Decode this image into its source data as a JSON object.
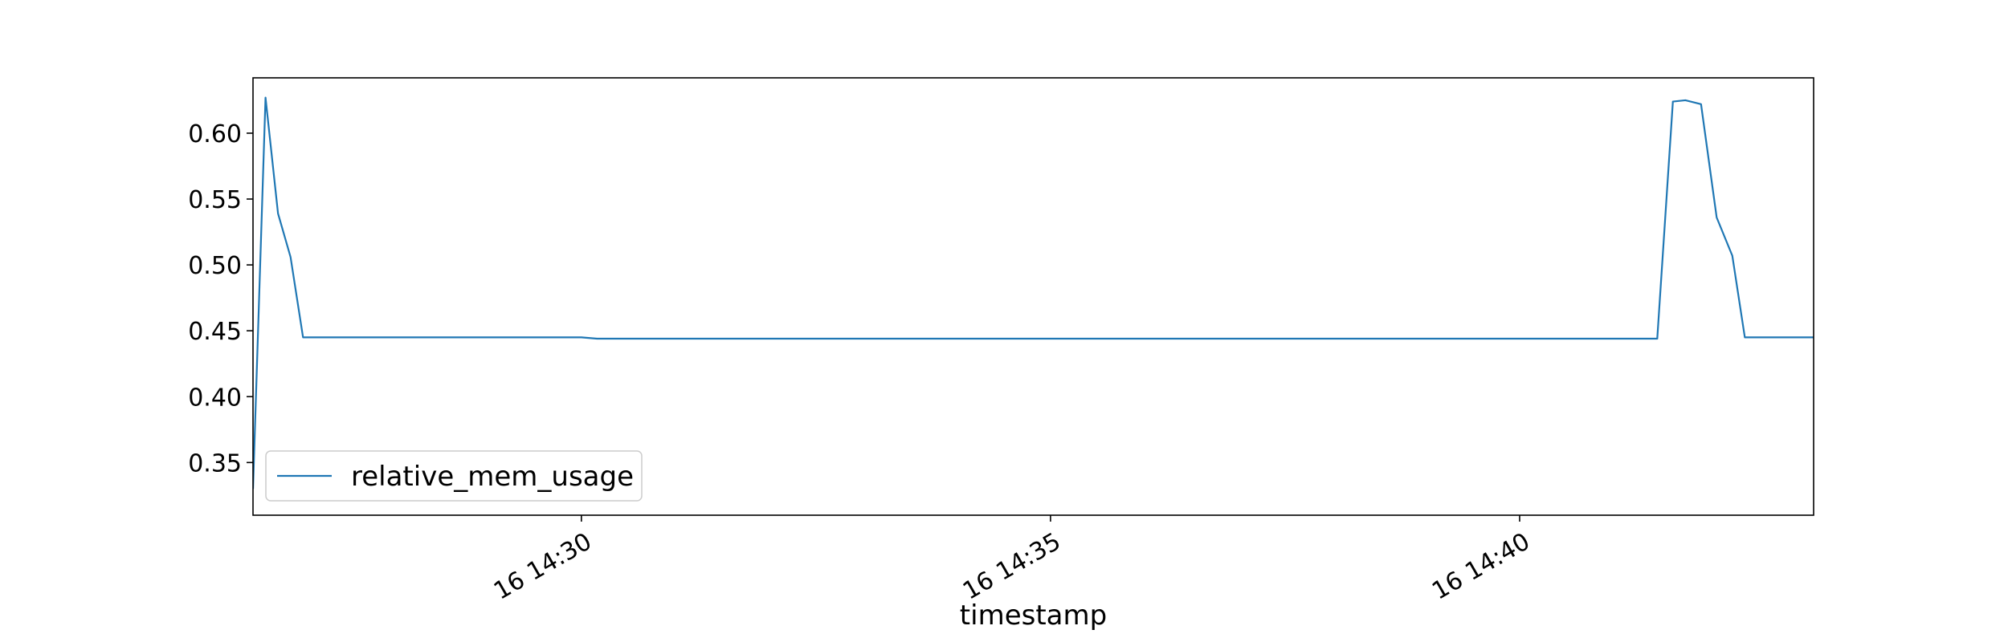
{
  "chart_data": {
    "type": "line",
    "title": "",
    "xlabel": "timestamp",
    "ylabel": "",
    "x_axis_type": "time",
    "x_range": [
      "2024-01-16 14:26:30",
      "2024-01-16 14:43:08"
    ],
    "xticks": [
      {
        "value": "2024-01-16 14:30:00",
        "label": "16 14:30"
      },
      {
        "value": "2024-01-16 14:35:00",
        "label": "16 14:35"
      },
      {
        "value": "2024-01-16 14:40:00",
        "label": "16 14:40"
      }
    ],
    "ylim": [
      0.31,
      0.642
    ],
    "yticks": [
      {
        "value": 0.35,
        "label": "0.35"
      },
      {
        "value": 0.4,
        "label": "0.40"
      },
      {
        "value": 0.45,
        "label": "0.45"
      },
      {
        "value": 0.5,
        "label": "0.50"
      },
      {
        "value": 0.55,
        "label": "0.55"
      },
      {
        "value": 0.6,
        "label": "0.60"
      }
    ],
    "grid": false,
    "legend": {
      "placement": "lower-left"
    },
    "series": [
      {
        "name": "relative_mem_usage",
        "color": "#1f77b4",
        "x": [
          "2024-01-16 14:26:30",
          "2024-01-16 14:26:38",
          "2024-01-16 14:26:46",
          "2024-01-16 14:26:54",
          "2024-01-16 14:27:02",
          "2024-01-16 14:27:10",
          "2024-01-16 14:27:20",
          "2024-01-16 14:27:30",
          "2024-01-16 14:28:30",
          "2024-01-16 14:29:30",
          "2024-01-16 14:30:00",
          "2024-01-16 14:30:10",
          "2024-01-16 14:31:00",
          "2024-01-16 14:32:00",
          "2024-01-16 14:33:00",
          "2024-01-16 14:34:00",
          "2024-01-16 14:35:00",
          "2024-01-16 14:36:00",
          "2024-01-16 14:37:00",
          "2024-01-16 14:38:00",
          "2024-01-16 14:39:00",
          "2024-01-16 14:40:00",
          "2024-01-16 14:41:00",
          "2024-01-16 14:41:28",
          "2024-01-16 14:41:38",
          "2024-01-16 14:41:46",
          "2024-01-16 14:41:56",
          "2024-01-16 14:42:06",
          "2024-01-16 14:42:16",
          "2024-01-16 14:42:24",
          "2024-01-16 14:42:30",
          "2024-01-16 14:43:08"
        ],
        "values": [
          0.33,
          0.627,
          0.539,
          0.506,
          0.445,
          0.445,
          0.445,
          0.445,
          0.445,
          0.445,
          0.445,
          0.444,
          0.444,
          0.444,
          0.444,
          0.444,
          0.444,
          0.444,
          0.444,
          0.444,
          0.444,
          0.444,
          0.444,
          0.444,
          0.624,
          0.625,
          0.622,
          0.536,
          0.507,
          0.445,
          0.445,
          0.445
        ]
      }
    ]
  }
}
